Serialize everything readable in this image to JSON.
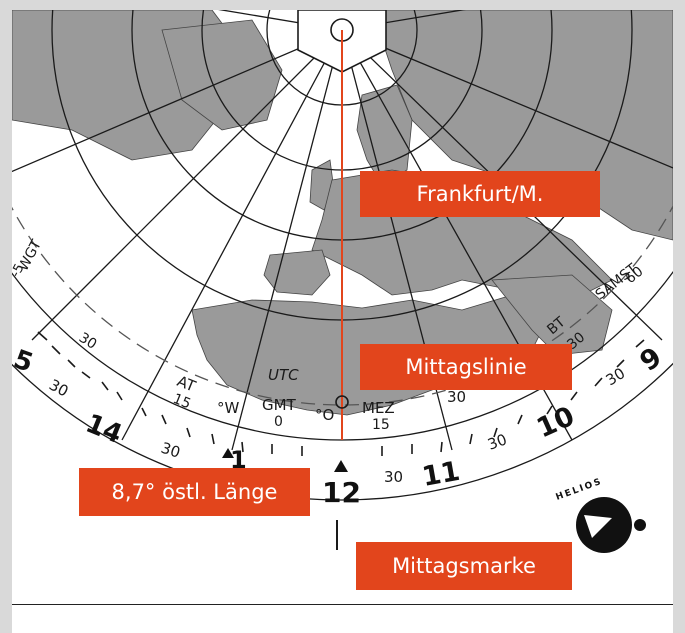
{
  "callouts": {
    "frankfurt": "Frankfurt/M.",
    "noon_line": "Mittagslinie",
    "longitude": "8,7° östl. Länge",
    "noon_mark": "Mittagsmarke"
  },
  "zone_labels": {
    "wgt": "WGT",
    "wgt_offset": "-5",
    "at": "AT",
    "at_offset": "15",
    "utc": "UTC",
    "gmt": "GMT",
    "gmt_offset": "0",
    "west": "°W",
    "east": "°O",
    "mez": "MEZ",
    "mez_offset": "15",
    "samst": "SAMST",
    "samst_offset": "60",
    "bt": "BT",
    "bt_offset": "30",
    "thirty": "30"
  },
  "hour_numbers": {
    "h5": "5",
    "h14": "14",
    "h1": "1",
    "h12": "12",
    "h11": "11",
    "h10": "10",
    "h9": "9"
  },
  "brand": {
    "name": "HELIOS"
  },
  "colors": {
    "callout": "#e2451c",
    "land": "#9a9a9a",
    "meridian": "#e2451c",
    "frame": "#d9d9d9"
  }
}
